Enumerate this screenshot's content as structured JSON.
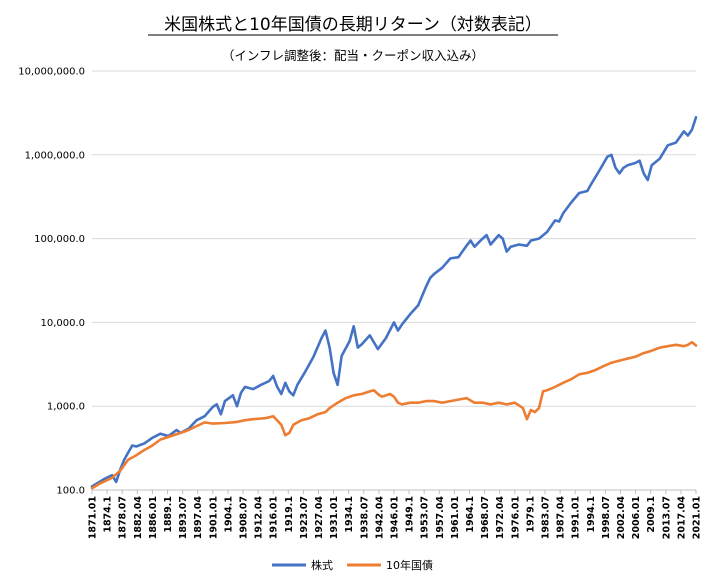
{
  "chart_data": {
    "type": "line",
    "title": "米国株式と10年国債の長期リターン（対数表記）",
    "subtitle": "（インフレ調整後：配当・クーポン収入込み）",
    "yscale": "log",
    "ylim": [
      100,
      10000000
    ],
    "y_ticks": [
      100,
      1000,
      10000,
      100000,
      1000000,
      10000000
    ],
    "y_tick_labels": [
      "100.0",
      "1,000.0",
      "10,000.0",
      "100,000.0",
      "1,000,000.0",
      "10,000,000.0"
    ],
    "xlim": [
      1871.0,
      2021.0
    ],
    "x_tick_labels": [
      "1871.01",
      "1874.1",
      "1878.07",
      "1882.04",
      "1886.01",
      "1889.1",
      "1893.07",
      "1897.04",
      "1901.01",
      "1904.1",
      "1908.07",
      "1912.04",
      "1916.01",
      "1919.1",
      "1923.07",
      "1927.04",
      "1931.01",
      "1934.1",
      "1938.07",
      "1942.04",
      "1946.01",
      "1949.1",
      "1953.07",
      "1957.04",
      "1961.01",
      "1964.1",
      "1968.07",
      "1972.04",
      "1976.01",
      "1979.1",
      "1983.07",
      "1987.04",
      "1991.01",
      "1994.1",
      "1998.07",
      "2002.04",
      "2006.01",
      "2009.1",
      "2013.07",
      "2017.04",
      "2021.01"
    ],
    "legend_position": "bottom",
    "series": [
      {
        "name": "株式",
        "color": "#4472C4",
        "x": [
          1871,
          1872,
          1874,
          1876,
          1877,
          1878,
          1879,
          1880,
          1881,
          1882,
          1884,
          1886,
          1888,
          1890,
          1892,
          1893,
          1895,
          1897,
          1899,
          1901,
          1902,
          1903,
          1904,
          1906,
          1907,
          1908,
          1909,
          1911,
          1913,
          1915,
          1916,
          1917,
          1918,
          1919,
          1920,
          1921,
          1922,
          1924,
          1926,
          1928,
          1929,
          1930,
          1931,
          1932,
          1933,
          1935,
          1936,
          1937,
          1938,
          1940,
          1942,
          1944,
          1946,
          1947,
          1948,
          1950,
          1952,
          1954,
          1955,
          1956,
          1958,
          1960,
          1962,
          1964,
          1965,
          1966,
          1968,
          1969,
          1970,
          1972,
          1973,
          1974,
          1975,
          1977,
          1979,
          1980,
          1982,
          1984,
          1986,
          1987,
          1988,
          1990,
          1992,
          1994,
          1995,
          1997,
          1999,
          2000,
          2001,
          2002,
          2003,
          2004,
          2006,
          2007,
          2008,
          2009,
          2010,
          2012,
          2014,
          2016,
          2018,
          2019,
          2020,
          2021
        ],
        "y": [
          110,
          118,
          135,
          150,
          125,
          175,
          230,
          280,
          340,
          330,
          360,
          420,
          470,
          440,
          520,
          480,
          540,
          680,
          760,
          980,
          1050,
          800,
          1150,
          1350,
          1000,
          1450,
          1700,
          1600,
          1800,
          2000,
          2300,
          1700,
          1400,
          1900,
          1500,
          1350,
          1800,
          2600,
          3900,
          6500,
          8000,
          5000,
          2500,
          1800,
          4000,
          6000,
          9000,
          5000,
          5500,
          7000,
          4800,
          6500,
          10000,
          8000,
          9500,
          12500,
          16000,
          27000,
          34000,
          38000,
          45000,
          58000,
          60000,
          82000,
          95000,
          80000,
          100000,
          110000,
          85000,
          110000,
          100000,
          70000,
          80000,
          85000,
          82000,
          95000,
          100000,
          120000,
          165000,
          160000,
          200000,
          270000,
          350000,
          370000,
          450000,
          650000,
          950000,
          1000000,
          700000,
          600000,
          700000,
          750000,
          800000,
          850000,
          600000,
          500000,
          750000,
          900000,
          1300000,
          1400000,
          1900000,
          1700000,
          2000000,
          2800000
        ]
      },
      {
        "name": "10年国債",
        "color": "#ED7D31",
        "x": [
          1871,
          1873,
          1876,
          1878,
          1880,
          1882,
          1884,
          1886,
          1888,
          1890,
          1893,
          1895,
          1897,
          1899,
          1901,
          1904,
          1907,
          1909,
          1911,
          1914,
          1916,
          1918,
          1919,
          1920,
          1921,
          1923,
          1925,
          1927,
          1929,
          1930,
          1932,
          1934,
          1936,
          1938,
          1940,
          1941,
          1942,
          1943,
          1945,
          1946,
          1947,
          1948,
          1950,
          1952,
          1954,
          1956,
          1958,
          1960,
          1962,
          1964,
          1966,
          1968,
          1970,
          1972,
          1974,
          1976,
          1978,
          1979,
          1980,
          1981,
          1982,
          1983,
          1984,
          1986,
          1988,
          1990,
          1992,
          1994,
          1996,
          1998,
          2000,
          2002,
          2004,
          2006,
          2008,
          2010,
          2012,
          2014,
          2016,
          2018,
          2019,
          2020,
          2021
        ],
        "y": [
          105,
          120,
          140,
          170,
          230,
          260,
          300,
          340,
          400,
          430,
          480,
          520,
          580,
          640,
          620,
          630,
          650,
          680,
          700,
          720,
          760,
          600,
          450,
          480,
          600,
          680,
          720,
          800,
          850,
          950,
          1100,
          1250,
          1350,
          1400,
          1500,
          1550,
          1400,
          1300,
          1400,
          1300,
          1100,
          1050,
          1100,
          1100,
          1150,
          1150,
          1100,
          1150,
          1200,
          1250,
          1100,
          1100,
          1050,
          1100,
          1050,
          1100,
          950,
          700,
          900,
          850,
          950,
          1500,
          1550,
          1700,
          1900,
          2100,
          2400,
          2500,
          2700,
          3000,
          3300,
          3500,
          3700,
          3900,
          4300,
          4600,
          5000,
          5200,
          5400,
          5200,
          5400,
          5800,
          5300
        ]
      }
    ]
  }
}
